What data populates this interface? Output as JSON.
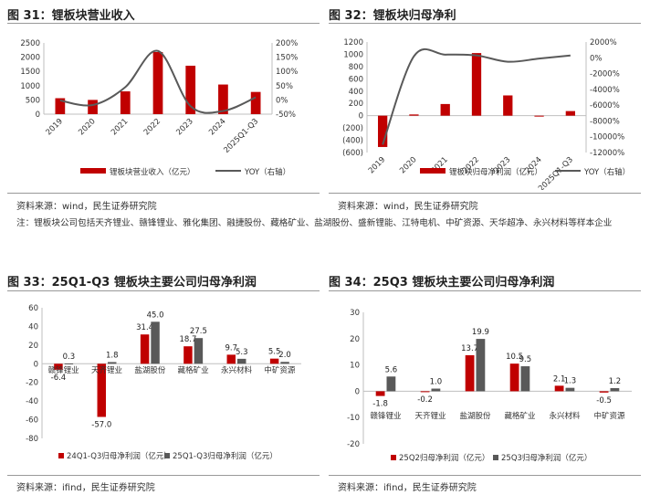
{
  "footnote": "注：锂板块公司包括天齐锂业、赣锋锂业、雅化集团、融捷股份、藏格矿业、盐湖股份、盛新锂能、江特电机、中矿资源、天华超净、永兴材料等样本企业",
  "colors": {
    "red": "#c00000",
    "gray": "#595959",
    "axis": "#bfbfbf",
    "text": "#333333"
  },
  "chart_data": [
    {
      "id": "c31",
      "figure_title": "图 31：锂板块营业收入",
      "source": "资料来源：wind，民生证券研究院",
      "type": "bar",
      "categories": [
        "2019",
        "2020",
        "2021",
        "2022",
        "2023",
        "2024",
        "2025Q1-Q3"
      ],
      "series": [
        {
          "name": "锂板块营业收入（亿元）",
          "type": "bar",
          "axis": "left",
          "values": [
            560,
            500,
            800,
            2180,
            1700,
            1040,
            780
          ]
        },
        {
          "name": "YOY（右轴）",
          "type": "line",
          "axis": "right",
          "values": [
            -2,
            -18,
            45,
            172,
            -22,
            -39,
            9
          ]
        }
      ],
      "ylim_left": [
        0,
        2500
      ],
      "yticks_left": [
        0,
        500,
        1000,
        1500,
        2000,
        2500
      ],
      "ytick_labels_left": [
        "0",
        "500",
        "1000",
        "1500",
        "2000",
        "2500"
      ],
      "ylim_right": [
        -50,
        200
      ],
      "yticks_right": [
        -50,
        0,
        50,
        100,
        150,
        200
      ],
      "ytick_labels_right": [
        "-50%",
        "0%",
        "50%",
        "100%",
        "150%",
        "200%"
      ],
      "legend": "bottom"
    },
    {
      "id": "c32",
      "figure_title": "图 32：锂板块归母净利",
      "source": "资料来源：wind，民生证券研究院",
      "type": "bar",
      "categories": [
        "2019",
        "2020",
        "2021",
        "2022",
        "2023",
        "2024",
        "2025Q1-Q3"
      ],
      "series": [
        {
          "name": "锂板块归母净利润（亿元）",
          "type": "bar",
          "axis": "left",
          "values": [
            -510,
            20,
            190,
            1020,
            330,
            -5,
            75
          ]
        },
        {
          "name": "YOY（右轴）",
          "type": "line",
          "axis": "right",
          "values": [
            -11000,
            200,
            400,
            300,
            -500,
            -100,
            300
          ]
        }
      ],
      "ylim_left": [
        -600,
        1200
      ],
      "yticks_left": [
        -600,
        -400,
        -200,
        0,
        200,
        400,
        600,
        800,
        1000,
        1200
      ],
      "ytick_labels_left": [
        "(600)",
        "(400)",
        "(200)",
        "0",
        "200",
        "400",
        "600",
        "800",
        "1000",
        "1200"
      ],
      "ylim_right": [
        -12000,
        2000
      ],
      "yticks_right": [
        -12000,
        -10000,
        -8000,
        -6000,
        -4000,
        -2000,
        0,
        2000
      ],
      "ytick_labels_right": [
        "-12000%",
        "-10000%",
        "-8000%",
        "-6000%",
        "-4000%",
        "-2000%",
        "0%",
        "2000%"
      ],
      "legend": "bottom"
    },
    {
      "id": "c33",
      "figure_title": "图 33：25Q1-Q3 锂板块主要公司归母净利润",
      "source": "资料来源：ifind，民生证券研究院",
      "type": "bar",
      "categories": [
        "赣锋锂业",
        "天齐锂业",
        "盐湖股份",
        "藏格矿业",
        "永兴材料",
        "中矿资源"
      ],
      "series": [
        {
          "name": "24Q1-Q3归母净利润（亿元）",
          "values": [
            -6.4,
            -57.0,
            31.4,
            18.7,
            9.7,
            5.5
          ],
          "labels": [
            "-6.4",
            "-57.0",
            "31.4",
            "18.7",
            "9.7",
            "5.5"
          ]
        },
        {
          "name": "25Q1-Q3归母净利润（亿元）",
          "values": [
            0.3,
            1.8,
            45.0,
            27.5,
            5.3,
            2.0
          ],
          "labels": [
            "0.3",
            "1.8",
            "45.0",
            "27.5",
            "5.3",
            "2.0"
          ]
        }
      ],
      "ylim": [
        -80,
        60
      ],
      "yticks": [
        -80,
        -60,
        -40,
        -20,
        0,
        20,
        40,
        60
      ],
      "ytick_labels": [
        "-80",
        "-60",
        "-40",
        "-20",
        "0",
        "20",
        "40",
        "60"
      ],
      "legend": "bottom"
    },
    {
      "id": "c34",
      "figure_title": "图 34：25Q3 锂板块主要公司归母净利润",
      "source": "资料来源：ifind，民生证券研究院",
      "type": "bar",
      "categories": [
        "赣锋锂业",
        "天齐锂业",
        "盐湖股份",
        "藏格矿业",
        "永兴材料",
        "中矿资源"
      ],
      "series": [
        {
          "name": "25Q2归母净利润（亿元）",
          "values": [
            -1.8,
            -0.2,
            13.7,
            10.5,
            2.1,
            -0.5
          ],
          "labels": [
            "-1.8",
            "-0.2",
            "13.7",
            "10.5",
            "2.1",
            "-0.5"
          ]
        },
        {
          "name": "25Q3归母净利润（亿元）",
          "values": [
            5.6,
            1.0,
            19.9,
            9.5,
            1.3,
            1.2
          ],
          "labels": [
            "5.6",
            "1.0",
            "19.9",
            "9.5",
            "1.3",
            "1.2"
          ]
        }
      ],
      "ylim": [
        -20,
        30
      ],
      "yticks": [
        -20,
        -10,
        0,
        10,
        20,
        30
      ],
      "ytick_labels": [
        "-20",
        "-10",
        "0",
        "10",
        "20",
        "30"
      ],
      "legend": "bottom"
    }
  ]
}
